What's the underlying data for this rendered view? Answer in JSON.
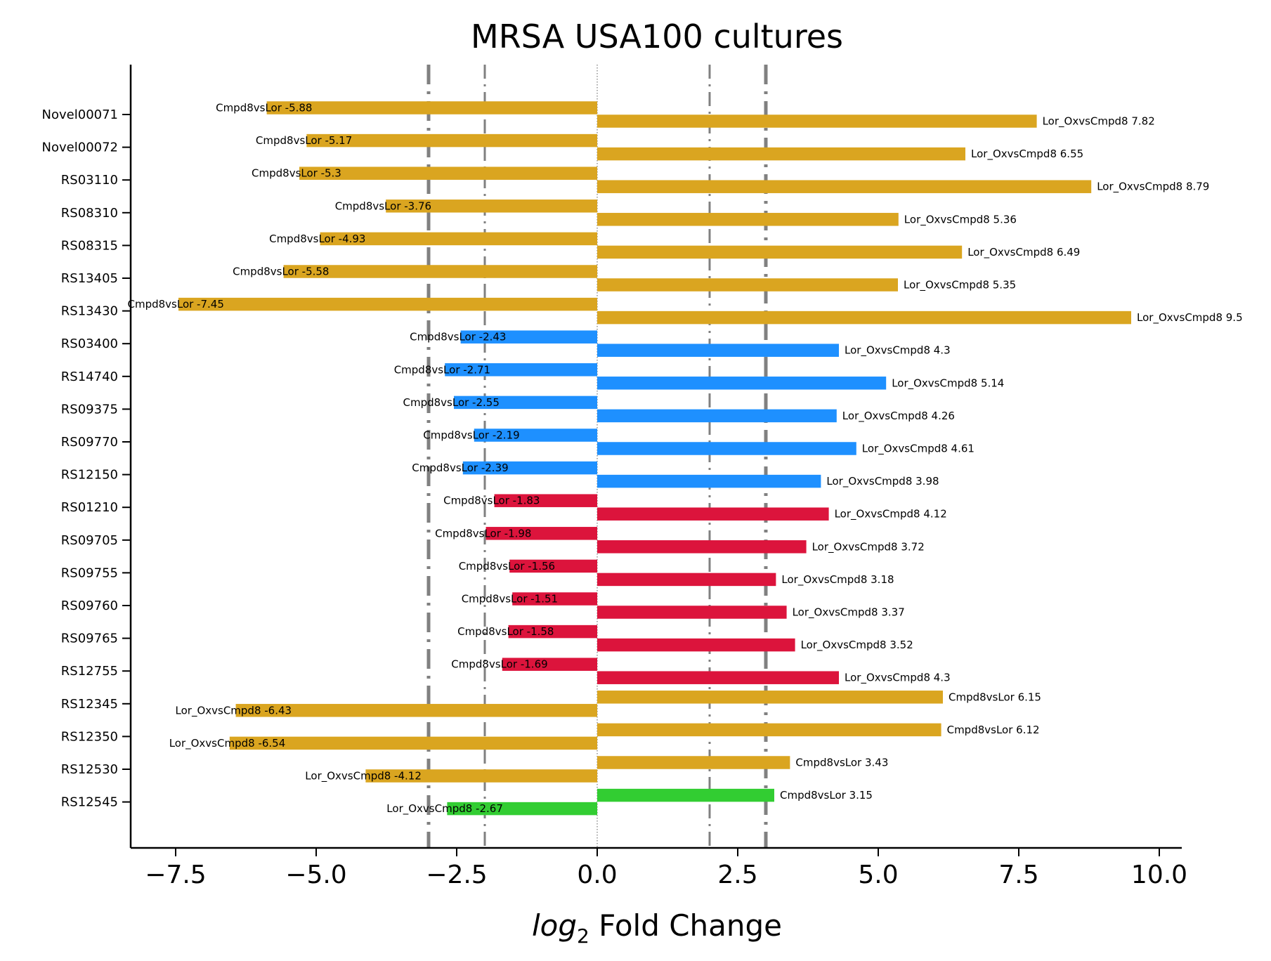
{
  "chart_data": {
    "type": "bar",
    "orientation": "horizontal",
    "title": "MRSA USA100 cultures",
    "xlabel_prefix": "log",
    "xlabel_subscript": "2",
    "xlabel_suffix": " Fold Change",
    "xlim": [
      -8.3,
      10.4
    ],
    "xticks": [
      -7.5,
      -5.0,
      -2.5,
      0.0,
      2.5,
      5.0,
      7.5,
      10.0
    ],
    "xtick_labels": [
      "−7.5",
      "−5.0",
      "−2.5",
      "0.0",
      "2.5",
      "5.0",
      "7.5",
      "10.0"
    ],
    "grid": false,
    "reference_lines": [
      {
        "x": -3,
        "style": "dashdot",
        "weight": "thick"
      },
      {
        "x": -2,
        "style": "dashdot",
        "weight": "thin"
      },
      {
        "x": 0,
        "style": "dotted",
        "weight": "hairline"
      },
      {
        "x": 2,
        "style": "dashdot",
        "weight": "thin"
      },
      {
        "x": 3,
        "style": "dashdot",
        "weight": "thick"
      }
    ],
    "colors": {
      "gold": "#DAA520",
      "blue": "#1E90FF",
      "red": "#DC143C",
      "green": "#32CD32",
      "reference": "#808080"
    },
    "categories": [
      "Novel00071",
      "Novel00072",
      "RS03110",
      "RS08310",
      "RS08315",
      "RS13405",
      "RS13430",
      "RS03400",
      "RS14740",
      "RS09375",
      "RS09770",
      "RS12150",
      "RS01210",
      "RS09705",
      "RS09755",
      "RS09760",
      "RS09765",
      "RS12755",
      "RS12345",
      "RS12350",
      "RS12530",
      "RS12545"
    ],
    "rows": [
      {
        "gene": "Novel00071",
        "upper": {
          "label": "Cmpd8vsLor -5.88",
          "value": -5.88,
          "color": "gold"
        },
        "lower": {
          "label": "Lor_OxvsCmpd8 7.82",
          "value": 7.82,
          "color": "gold"
        }
      },
      {
        "gene": "Novel00072",
        "upper": {
          "label": "Cmpd8vsLor -5.17",
          "value": -5.17,
          "color": "gold"
        },
        "lower": {
          "label": "Lor_OxvsCmpd8 6.55",
          "value": 6.55,
          "color": "gold"
        }
      },
      {
        "gene": "RS03110",
        "upper": {
          "label": "Cmpd8vsLor -5.3",
          "value": -5.3,
          "color": "gold"
        },
        "lower": {
          "label": "Lor_OxvsCmpd8 8.79",
          "value": 8.79,
          "color": "gold"
        }
      },
      {
        "gene": "RS08310",
        "upper": {
          "label": "Cmpd8vsLor -3.76",
          "value": -3.76,
          "color": "gold"
        },
        "lower": {
          "label": "Lor_OxvsCmpd8 5.36",
          "value": 5.36,
          "color": "gold"
        }
      },
      {
        "gene": "RS08315",
        "upper": {
          "label": "Cmpd8vsLor -4.93",
          "value": -4.93,
          "color": "gold"
        },
        "lower": {
          "label": "Lor_OxvsCmpd8 6.49",
          "value": 6.49,
          "color": "gold"
        }
      },
      {
        "gene": "RS13405",
        "upper": {
          "label": "Cmpd8vsLor -5.58",
          "value": -5.58,
          "color": "gold"
        },
        "lower": {
          "label": "Lor_OxvsCmpd8 5.35",
          "value": 5.35,
          "color": "gold"
        }
      },
      {
        "gene": "RS13430",
        "upper": {
          "label": "Cmpd8vsLor -7.45",
          "value": -7.45,
          "color": "gold"
        },
        "lower": {
          "label": "Lor_OxvsCmpd8 9.5",
          "value": 9.5,
          "color": "gold"
        }
      },
      {
        "gene": "RS03400",
        "upper": {
          "label": "Cmpd8vsLor -2.43",
          "value": -2.43,
          "color": "blue"
        },
        "lower": {
          "label": "Lor_OxvsCmpd8 4.3",
          "value": 4.3,
          "color": "blue"
        }
      },
      {
        "gene": "RS14740",
        "upper": {
          "label": "Cmpd8vsLor -2.71",
          "value": -2.71,
          "color": "blue"
        },
        "lower": {
          "label": "Lor_OxvsCmpd8 5.14",
          "value": 5.14,
          "color": "blue"
        }
      },
      {
        "gene": "RS09375",
        "upper": {
          "label": "Cmpd8vsLor -2.55",
          "value": -2.55,
          "color": "blue"
        },
        "lower": {
          "label": "Lor_OxvsCmpd8 4.26",
          "value": 4.26,
          "color": "blue"
        }
      },
      {
        "gene": "RS09770",
        "upper": {
          "label": "Cmpd8vsLor -2.19",
          "value": -2.19,
          "color": "blue"
        },
        "lower": {
          "label": "Lor_OxvsCmpd8 4.61",
          "value": 4.61,
          "color": "blue"
        }
      },
      {
        "gene": "RS12150",
        "upper": {
          "label": "Cmpd8vsLor -2.39",
          "value": -2.39,
          "color": "blue"
        },
        "lower": {
          "label": "Lor_OxvsCmpd8 3.98",
          "value": 3.98,
          "color": "blue"
        }
      },
      {
        "gene": "RS01210",
        "upper": {
          "label": "Cmpd8vsLor -1.83",
          "value": -1.83,
          "color": "red"
        },
        "lower": {
          "label": "Lor_OxvsCmpd8 4.12",
          "value": 4.12,
          "color": "red"
        }
      },
      {
        "gene": "RS09705",
        "upper": {
          "label": "Cmpd8vsLor -1.98",
          "value": -1.98,
          "color": "red"
        },
        "lower": {
          "label": "Lor_OxvsCmpd8 3.72",
          "value": 3.72,
          "color": "red"
        }
      },
      {
        "gene": "RS09755",
        "upper": {
          "label": "Cmpd8vsLor -1.56",
          "value": -1.56,
          "color": "red"
        },
        "lower": {
          "label": "Lor_OxvsCmpd8 3.18",
          "value": 3.18,
          "color": "red"
        }
      },
      {
        "gene": "RS09760",
        "upper": {
          "label": "Cmpd8vsLor -1.51",
          "value": -1.51,
          "color": "red"
        },
        "lower": {
          "label": "Lor_OxvsCmpd8 3.37",
          "value": 3.37,
          "color": "red"
        }
      },
      {
        "gene": "RS09765",
        "upper": {
          "label": "Cmpd8vsLor -1.58",
          "value": -1.58,
          "color": "red"
        },
        "lower": {
          "label": "Lor_OxvsCmpd8 3.52",
          "value": 3.52,
          "color": "red"
        }
      },
      {
        "gene": "RS12755",
        "upper": {
          "label": "Cmpd8vsLor -1.69",
          "value": -1.69,
          "color": "red"
        },
        "lower": {
          "label": "Lor_OxvsCmpd8 4.3",
          "value": 4.3,
          "color": "red"
        }
      },
      {
        "gene": "RS12345",
        "upper": {
          "label": "Cmpd8vsLor 6.15",
          "value": 6.15,
          "color": "gold"
        },
        "lower": {
          "label": "Lor_OxvsCmpd8 -6.43",
          "value": -6.43,
          "color": "gold"
        }
      },
      {
        "gene": "RS12350",
        "upper": {
          "label": "Cmpd8vsLor 6.12",
          "value": 6.12,
          "color": "gold"
        },
        "lower": {
          "label": "Lor_OxvsCmpd8 -6.54",
          "value": -6.54,
          "color": "gold"
        }
      },
      {
        "gene": "RS12530",
        "upper": {
          "label": "Cmpd8vsLor 3.43",
          "value": 3.43,
          "color": "gold"
        },
        "lower": {
          "label": "Lor_OxvsCmpd8 -4.12",
          "value": -4.12,
          "color": "gold"
        }
      },
      {
        "gene": "RS12545",
        "upper": {
          "label": "Cmpd8vsLor 3.15",
          "value": 3.15,
          "color": "green"
        },
        "lower": {
          "label": "Lor_OxvsCmpd8 -2.67",
          "value": -2.67,
          "color": "green"
        }
      }
    ]
  }
}
